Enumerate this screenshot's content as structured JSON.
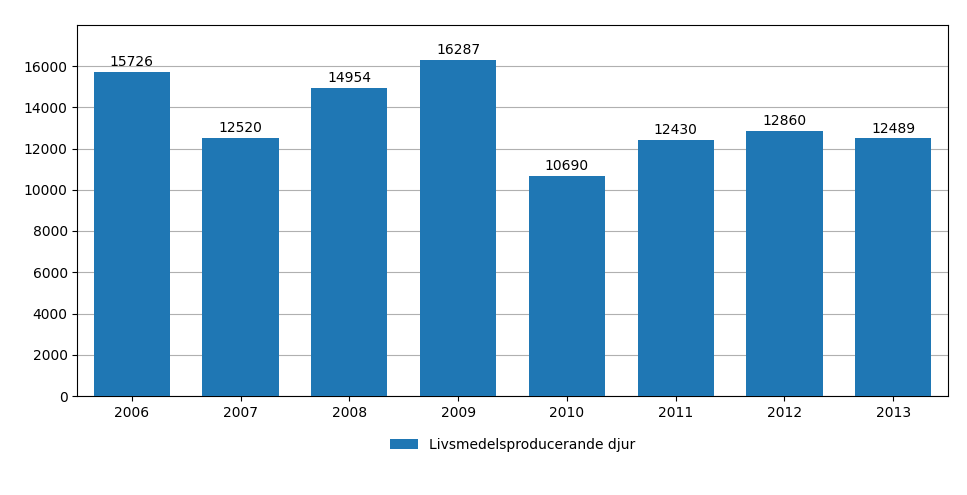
{
  "chart_data": {
    "type": "bar",
    "categories": [
      "2006",
      "2007",
      "2008",
      "2009",
      "2010",
      "2011",
      "2012",
      "2013"
    ],
    "series": [
      {
        "name": "Livsmedelsproducerande djur",
        "values": [
          15726,
          12520,
          14954,
          16287,
          10690,
          12430,
          12860,
          12489
        ]
      }
    ],
    "ylim": [
      0,
      18000
    ],
    "yticks": [
      0,
      2000,
      4000,
      6000,
      8000,
      10000,
      12000,
      14000,
      16000
    ],
    "grid": true,
    "legend": "upper center",
    "data_labels": true
  }
}
